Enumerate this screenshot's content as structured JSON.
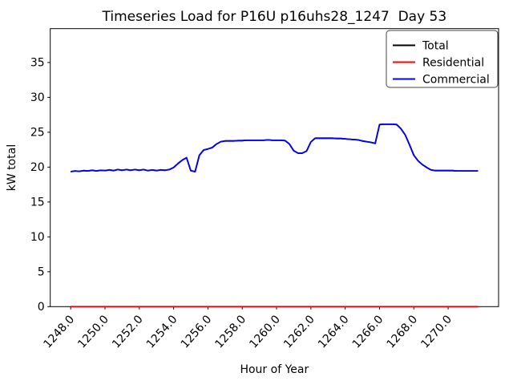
{
  "figure": {
    "background": "#ffffff"
  },
  "chart_data": {
    "type": "line",
    "title": "Timeseries Load for P16U p16uhs28_1247  Day 53",
    "xlabel": "Hour of Year",
    "ylabel": "kW total",
    "xlim": [
      1246.81,
      1272.94
    ],
    "ylim": [
      0,
      39.85
    ],
    "grid": false,
    "x_start": 1248.0,
    "x_step": 0.25,
    "x_end": 1271.75,
    "x_tick_values": [
      1248,
      1250,
      1252,
      1254,
      1256,
      1258,
      1260,
      1262,
      1264,
      1266,
      1268,
      1270
    ],
    "x_tick_labels": [
      "1248.0",
      "1250.0",
      "1252.0",
      "1254.0",
      "1256.0",
      "1258.0",
      "1260.0",
      "1262.0",
      "1264.0",
      "1266.0",
      "1268.0",
      "1270.0"
    ],
    "y_tick_values": [
      0,
      5,
      10,
      15,
      20,
      25,
      30,
      35
    ],
    "y_tick_labels": [
      "0",
      "5",
      "10",
      "15",
      "20",
      "25",
      "30",
      "35"
    ],
    "legend": {
      "position": "upper right",
      "entries": [
        {
          "label": "Total",
          "color": "#000000"
        },
        {
          "label": "Residential",
          "color": "#ff0000"
        },
        {
          "label": "Commercial",
          "color": "#0000ff"
        }
      ]
    },
    "series": [
      {
        "name": "Total",
        "color": "#000000",
        "values": [
          19.35,
          19.45,
          19.4,
          19.5,
          19.45,
          19.55,
          19.45,
          19.55,
          19.5,
          19.6,
          19.5,
          19.65,
          19.55,
          19.65,
          19.55,
          19.65,
          19.55,
          19.65,
          19.5,
          19.6,
          19.5,
          19.6,
          19.55,
          19.65,
          19.95,
          20.5,
          21.0,
          21.35,
          19.5,
          19.35,
          21.7,
          22.45,
          22.6,
          22.8,
          23.3,
          23.65,
          23.75,
          23.75,
          23.75,
          23.8,
          23.8,
          23.85,
          23.85,
          23.85,
          23.85,
          23.85,
          23.9,
          23.85,
          23.85,
          23.85,
          23.8,
          23.3,
          22.35,
          22.0,
          22.0,
          22.3,
          23.6,
          24.15,
          24.15,
          24.15,
          24.15,
          24.15,
          24.1,
          24.1,
          24.05,
          24.0,
          23.95,
          23.9,
          23.75,
          23.65,
          23.55,
          23.4,
          26.1,
          26.15,
          26.15,
          26.15,
          26.1,
          25.5,
          24.6,
          23.2,
          21.7,
          20.9,
          20.35,
          19.95,
          19.6,
          19.5,
          19.5,
          19.5,
          19.5,
          19.5,
          19.45,
          19.45,
          19.45,
          19.45,
          19.45,
          19.45
        ]
      },
      {
        "name": "Residential",
        "color": "#ff0000",
        "values": [
          0,
          0,
          0,
          0,
          0,
          0,
          0,
          0,
          0,
          0,
          0,
          0,
          0,
          0,
          0,
          0,
          0,
          0,
          0,
          0,
          0,
          0,
          0,
          0,
          0,
          0,
          0,
          0,
          0,
          0,
          0,
          0,
          0,
          0,
          0,
          0,
          0,
          0,
          0,
          0,
          0,
          0,
          0,
          0,
          0,
          0,
          0,
          0,
          0,
          0,
          0,
          0,
          0,
          0,
          0,
          0,
          0,
          0,
          0,
          0,
          0,
          0,
          0,
          0,
          0,
          0,
          0,
          0,
          0,
          0,
          0,
          0,
          0,
          0,
          0,
          0,
          0,
          0,
          0,
          0,
          0,
          0,
          0,
          0,
          0,
          0,
          0,
          0,
          0,
          0,
          0,
          0,
          0,
          0,
          0,
          0
        ]
      },
      {
        "name": "Commercial",
        "color": "#0000ff",
        "values": [
          19.35,
          19.45,
          19.4,
          19.5,
          19.45,
          19.55,
          19.45,
          19.55,
          19.5,
          19.6,
          19.5,
          19.65,
          19.55,
          19.65,
          19.55,
          19.65,
          19.55,
          19.65,
          19.5,
          19.6,
          19.5,
          19.6,
          19.55,
          19.65,
          19.95,
          20.5,
          21.0,
          21.35,
          19.5,
          19.35,
          21.7,
          22.45,
          22.6,
          22.8,
          23.3,
          23.65,
          23.75,
          23.75,
          23.75,
          23.8,
          23.8,
          23.85,
          23.85,
          23.85,
          23.85,
          23.85,
          23.9,
          23.85,
          23.85,
          23.85,
          23.8,
          23.3,
          22.35,
          22.0,
          22.0,
          22.3,
          23.6,
          24.15,
          24.15,
          24.15,
          24.15,
          24.15,
          24.1,
          24.1,
          24.05,
          24.0,
          23.95,
          23.9,
          23.75,
          23.65,
          23.55,
          23.4,
          26.1,
          26.15,
          26.15,
          26.15,
          26.1,
          25.5,
          24.6,
          23.2,
          21.7,
          20.9,
          20.35,
          19.95,
          19.6,
          19.5,
          19.5,
          19.5,
          19.5,
          19.5,
          19.45,
          19.45,
          19.45,
          19.45,
          19.45,
          19.45
        ]
      }
    ]
  }
}
